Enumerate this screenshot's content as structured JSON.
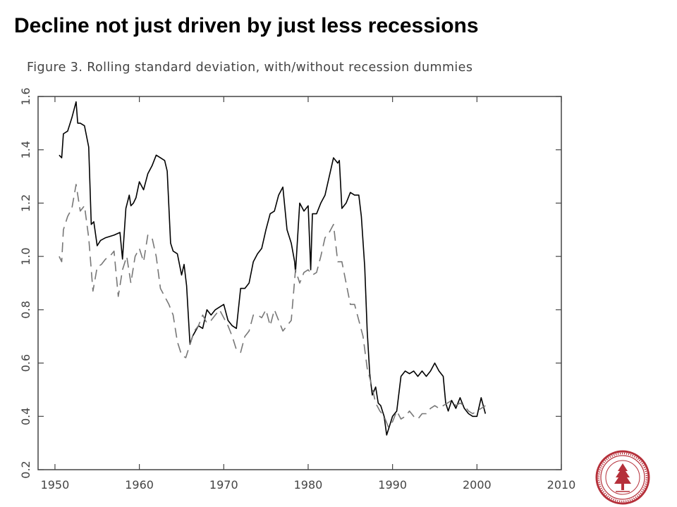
{
  "slide_title": "Decline not just driven by just less recessions",
  "figure_caption": "Figure 3.   Rolling standard deviation, with/without recession dummies",
  "colors": {
    "series_solid": "#000000",
    "series_dashed": "#777777",
    "axis": "#444444",
    "tick_label": "#444444",
    "seal": "#b5303a"
  },
  "icons": {
    "logo": "university-seal-icon"
  },
  "chart_data": {
    "type": "line",
    "title": "Figure 3.   Rolling standard deviation, with/without recession dummies",
    "xlabel": "",
    "ylabel": "",
    "xlim": [
      1948,
      2010
    ],
    "ylim": [
      0.2,
      1.6
    ],
    "xticks": [
      1950,
      1960,
      1970,
      1980,
      1990,
      2000,
      2010
    ],
    "yticks": [
      0.2,
      0.4,
      0.6,
      0.8,
      1.0,
      1.2,
      1.4,
      1.6
    ],
    "xtick_labels": [
      "1950",
      "1960",
      "1970",
      "1980",
      "1990",
      "2000",
      "2010"
    ],
    "ytick_labels": [
      "0.2",
      "0.4",
      "0.6",
      "0.8",
      "1.0",
      "1.2",
      "1.4",
      "1.6"
    ],
    "grid": false,
    "legend": "none",
    "series": [
      {
        "style": "solid",
        "x": [
          1950.5,
          1950.8,
          1951.0,
          1951.5,
          1952.0,
          1952.5,
          1952.7,
          1953.0,
          1953.5,
          1954.0,
          1954.3,
          1954.6,
          1955.0,
          1955.4,
          1956.0,
          1957.0,
          1957.7,
          1958.0,
          1958.4,
          1958.8,
          1959.0,
          1959.3,
          1959.6,
          1960.0,
          1960.5,
          1961.0,
          1961.5,
          1962.0,
          1962.5,
          1963.0,
          1963.3,
          1963.7,
          1964.0,
          1964.5,
          1965.0,
          1965.3,
          1965.6,
          1966.0,
          1966.3,
          1967.0,
          1967.5,
          1968.0,
          1968.5,
          1969.0,
          1969.5,
          1970.0,
          1970.5,
          1971.0,
          1971.5,
          1972.0,
          1972.5,
          1973.0,
          1973.5,
          1974.0,
          1974.5,
          1975.0,
          1975.5,
          1976.0,
          1976.5,
          1977.0,
          1977.5,
          1978.0,
          1978.4,
          1978.5,
          1979.0,
          1979.5,
          1980.0,
          1980.3,
          1980.5,
          1981.0,
          1981.5,
          1982.0,
          1982.5,
          1983.0,
          1983.5,
          1983.7,
          1984.0,
          1984.5,
          1985.0,
          1985.5,
          1986.0,
          1986.3,
          1986.7,
          1987.0,
          1987.3,
          1987.6,
          1988.0,
          1988.3,
          1988.6,
          1989.0,
          1989.3,
          1989.6,
          1990.0,
          1990.5,
          1991.0,
          1991.5,
          1992.0,
          1992.5,
          1993.0,
          1993.5,
          1994.0,
          1994.5,
          1995.0,
          1995.5,
          1996.0,
          1996.3,
          1996.6,
          1997.0,
          1997.5,
          1998.0,
          1998.5,
          1999.0,
          1999.5,
          2000.0,
          2000.5,
          2001.0
        ],
        "y": [
          1.38,
          1.37,
          1.46,
          1.47,
          1.52,
          1.58,
          1.5,
          1.5,
          1.49,
          1.41,
          1.12,
          1.13,
          1.04,
          1.06,
          1.07,
          1.08,
          1.09,
          0.99,
          1.18,
          1.23,
          1.19,
          1.2,
          1.22,
          1.28,
          1.25,
          1.31,
          1.34,
          1.38,
          1.37,
          1.36,
          1.32,
          1.05,
          1.02,
          1.01,
          0.93,
          0.97,
          0.89,
          0.67,
          0.7,
          0.74,
          0.73,
          0.8,
          0.78,
          0.8,
          0.81,
          0.82,
          0.76,
          0.74,
          0.73,
          0.88,
          0.88,
          0.9,
          0.98,
          1.01,
          1.03,
          1.1,
          1.16,
          1.17,
          1.23,
          1.26,
          1.1,
          1.05,
          0.98,
          0.94,
          1.2,
          1.17,
          1.19,
          0.95,
          1.16,
          1.16,
          1.2,
          1.23,
          1.3,
          1.37,
          1.35,
          1.36,
          1.18,
          1.2,
          1.24,
          1.23,
          1.23,
          1.15,
          0.96,
          0.72,
          0.56,
          0.48,
          0.51,
          0.45,
          0.44,
          0.4,
          0.33,
          0.36,
          0.4,
          0.42,
          0.55,
          0.57,
          0.56,
          0.57,
          0.55,
          0.57,
          0.55,
          0.57,
          0.6,
          0.57,
          0.55,
          0.45,
          0.42,
          0.46,
          0.43,
          0.47,
          0.43,
          0.41,
          0.4,
          0.4,
          0.47,
          0.41
        ]
      },
      {
        "style": "dashed",
        "x": [
          1950.5,
          1950.8,
          1951.0,
          1951.5,
          1952.0,
          1952.5,
          1953.0,
          1953.5,
          1954.0,
          1954.5,
          1955.0,
          1955.5,
          1956.0,
          1956.5,
          1957.0,
          1957.5,
          1958.0,
          1958.5,
          1959.0,
          1959.5,
          1960.0,
          1960.5,
          1961.0,
          1961.5,
          1962.0,
          1962.5,
          1963.0,
          1963.5,
          1964.0,
          1964.5,
          1965.0,
          1965.5,
          1966.0,
          1966.5,
          1967.0,
          1967.5,
          1968.0,
          1968.5,
          1969.0,
          1969.5,
          1970.0,
          1970.5,
          1971.0,
          1971.5,
          1972.0,
          1972.5,
          1973.0,
          1973.5,
          1974.0,
          1974.5,
          1975.0,
          1975.5,
          1976.0,
          1976.5,
          1977.0,
          1977.5,
          1978.0,
          1978.5,
          1979.0,
          1979.5,
          1980.0,
          1980.5,
          1981.0,
          1981.5,
          1982.0,
          1982.5,
          1983.0,
          1983.5,
          1984.0,
          1984.5,
          1985.0,
          1985.5,
          1986.0,
          1986.5,
          1987.0,
          1987.5,
          1988.0,
          1988.5,
          1989.0,
          1989.5,
          1990.0,
          1990.5,
          1991.0,
          1991.5,
          1992.0,
          1992.5,
          1993.0,
          1993.5,
          1994.0,
          1994.5,
          1995.0,
          1995.5,
          1996.0,
          1996.5,
          1997.0,
          1997.5,
          1998.0,
          1998.5,
          1999.0,
          1999.5,
          2000.0,
          2000.5,
          2001.0
        ],
        "y": [
          1.0,
          0.98,
          1.1,
          1.15,
          1.18,
          1.27,
          1.17,
          1.19,
          1.07,
          0.87,
          0.96,
          0.97,
          0.99,
          1.0,
          1.02,
          0.85,
          0.95,
          1.0,
          0.9,
          1.0,
          1.03,
          0.98,
          1.08,
          1.07,
          1.0,
          0.88,
          0.85,
          0.82,
          0.78,
          0.68,
          0.63,
          0.62,
          0.67,
          0.72,
          0.74,
          0.78,
          0.75,
          0.76,
          0.78,
          0.8,
          0.77,
          0.74,
          0.7,
          0.65,
          0.64,
          0.7,
          0.72,
          0.78,
          0.78,
          0.77,
          0.8,
          0.74,
          0.8,
          0.76,
          0.72,
          0.74,
          0.76,
          0.95,
          0.9,
          0.94,
          0.95,
          0.93,
          0.94,
          1.0,
          1.07,
          1.09,
          1.12,
          0.98,
          0.98,
          0.9,
          0.82,
          0.82,
          0.76,
          0.7,
          0.58,
          0.52,
          0.45,
          0.42,
          0.4,
          0.36,
          0.38,
          0.42,
          0.39,
          0.4,
          0.42,
          0.4,
          0.39,
          0.41,
          0.41,
          0.43,
          0.44,
          0.43,
          0.44,
          0.45,
          0.46,
          0.44,
          0.45,
          0.44,
          0.42,
          0.41,
          0.42,
          0.43,
          0.44
        ]
      }
    ]
  }
}
